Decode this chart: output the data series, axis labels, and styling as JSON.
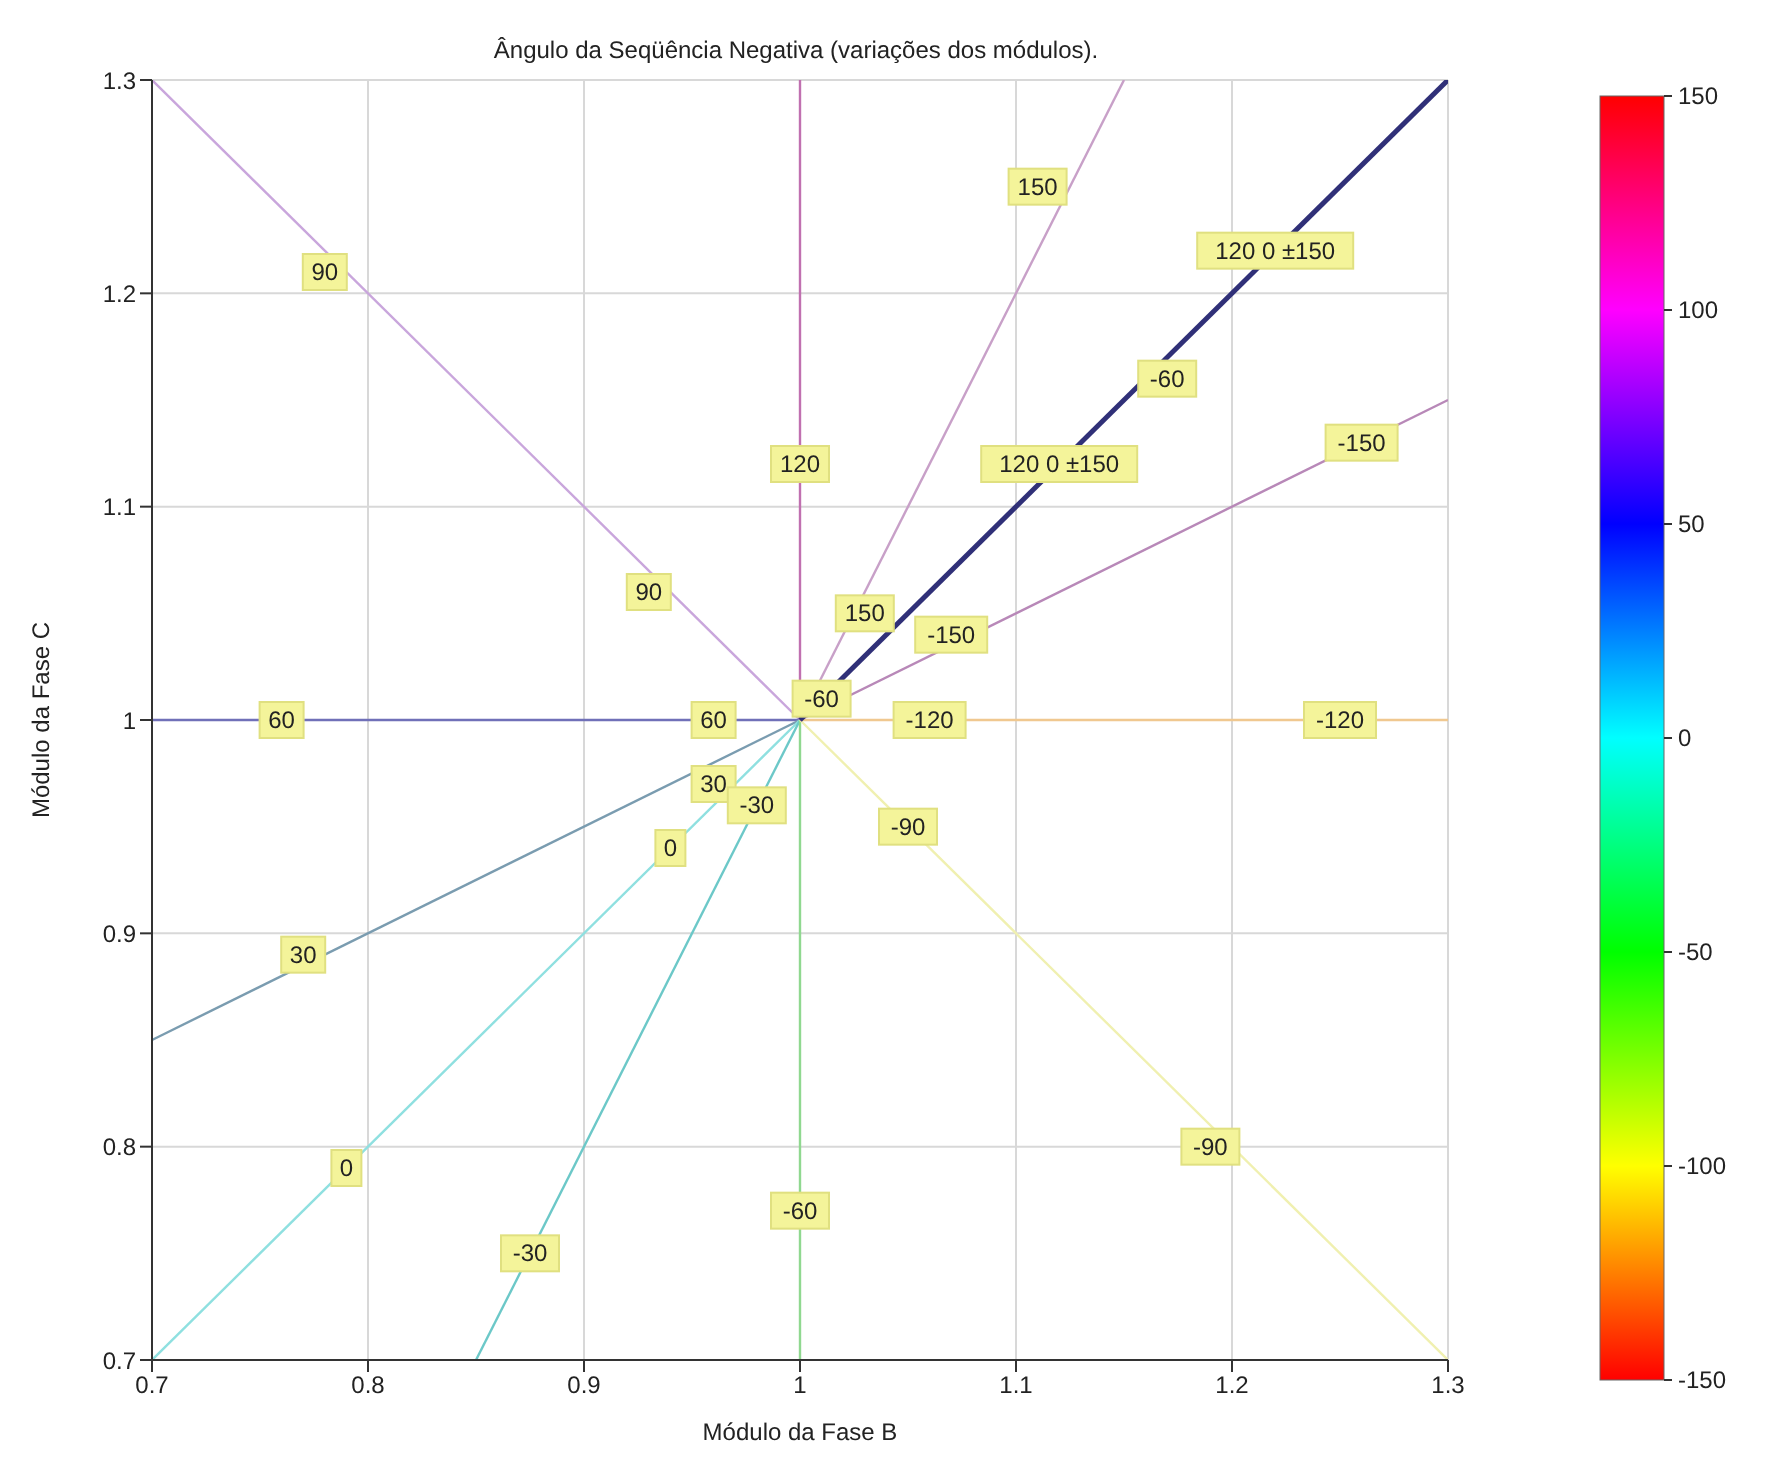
{
  "chart_data": {
    "type": "line",
    "title": "Ângulo da Seqüência Negativa (variações dos módulos).",
    "xlabel": "Módulo da Fase B",
    "ylabel": "Módulo da Fase C",
    "xlim": [
      0.7,
      1.3
    ],
    "ylim": [
      0.7,
      1.3
    ],
    "xticks": [
      0.7,
      0.8,
      0.9,
      1,
      1.1,
      1.2,
      1.3
    ],
    "yticks": [
      0.7,
      0.8,
      0.9,
      1,
      1.1,
      1.2,
      1.3
    ],
    "grid": true,
    "clim": [
      -150,
      150
    ],
    "cticks": [
      150,
      100,
      50,
      0,
      -50,
      -100,
      -150
    ],
    "series": [
      {
        "color": "#c9a6dc",
        "x": [
          0.7,
          1
        ],
        "values": [
          1.3,
          1
        ]
      },
      {
        "color": "#7070b8",
        "x": [
          0.7,
          1
        ],
        "values": [
          1,
          1
        ]
      },
      {
        "color": "#7a9cb0",
        "x": [
          0.7,
          1
        ],
        "values": [
          0.85,
          1
        ]
      },
      {
        "color": "#8fe0e0",
        "x": [
          0.7,
          1
        ],
        "values": [
          0.7,
          1
        ]
      },
      {
        "color": "#6cc8c8",
        "x": [
          0.85,
          1
        ],
        "values": [
          0.7,
          1
        ]
      },
      {
        "color": "#90d890",
        "x": [
          1,
          1
        ],
        "values": [
          0.7,
          1
        ]
      },
      {
        "color": "#f0f0b0",
        "x": [
          1,
          1.3
        ],
        "values": [
          1,
          0.7
        ]
      },
      {
        "color": "#f0c890",
        "x": [
          1,
          1.3
        ],
        "values": [
          1,
          1
        ]
      },
      {
        "color": "#b888b8",
        "x": [
          1,
          1.3
        ],
        "values": [
          1,
          1.15
        ]
      },
      {
        "color": "#c8a0c8",
        "x": [
          1,
          1.15
        ],
        "values": [
          1,
          1.3
        ]
      },
      {
        "color": "#c070b0",
        "x": [
          1,
          1
        ],
        "values": [
          1,
          1.3
        ]
      },
      {
        "color": "#303078",
        "x": [
          1,
          1.3
        ],
        "values": [
          1,
          1.3
        ]
      }
    ],
    "annotations": [
      {
        "text": "90",
        "x": 0.78,
        "y": 1.21
      },
      {
        "text": "90",
        "x": 0.93,
        "y": 1.06
      },
      {
        "text": "120",
        "x": 1,
        "y": 1.12
      },
      {
        "text": "150",
        "x": 1.11,
        "y": 1.25
      },
      {
        "text": "120 0 ±150",
        "x": 1.22,
        "y": 1.22
      },
      {
        "text": "-60",
        "x": 1.17,
        "y": 1.16
      },
      {
        "text": "120 0 ±150",
        "x": 1.12,
        "y": 1.12
      },
      {
        "text": "-150",
        "x": 1.26,
        "y": 1.13
      },
      {
        "text": "-150",
        "x": 1.07,
        "y": 1.04
      },
      {
        "text": "150",
        "x": 1.03,
        "y": 1.05
      },
      {
        "text": "-60",
        "x": 1.01,
        "y": 1.01
      },
      {
        "text": "-120",
        "x": 1.06,
        "y": 1
      },
      {
        "text": "-120",
        "x": 1.25,
        "y": 1
      },
      {
        "text": "60",
        "x": 0.76,
        "y": 1
      },
      {
        "text": "60",
        "x": 0.96,
        "y": 1
      },
      {
        "text": "30",
        "x": 0.96,
        "y": 0.97
      },
      {
        "text": "-30",
        "x": 0.98,
        "y": 0.96
      },
      {
        "text": "0",
        "x": 0.94,
        "y": 0.94
      },
      {
        "text": "-90",
        "x": 1.05,
        "y": 0.95
      },
      {
        "text": "30",
        "x": 0.77,
        "y": 0.89
      },
      {
        "text": "0",
        "x": 0.79,
        "y": 0.79
      },
      {
        "text": "-60",
        "x": 1,
        "y": 0.77
      },
      {
        "text": "-30",
        "x": 0.875,
        "y": 0.75
      },
      {
        "text": "-90",
        "x": 1.19,
        "y": 0.8
      }
    ]
  }
}
